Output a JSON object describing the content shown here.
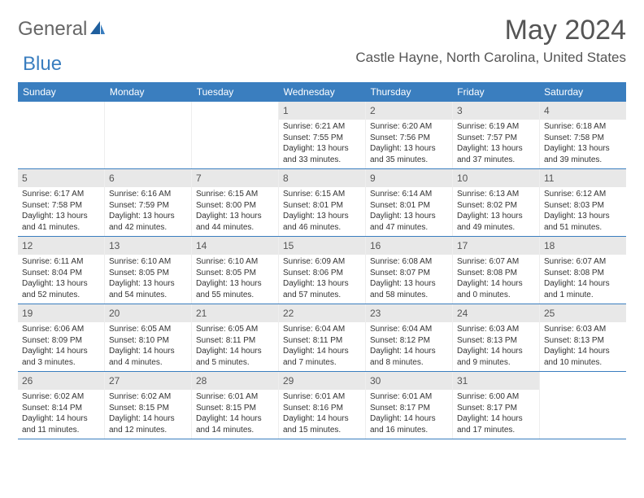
{
  "brand": {
    "textA": "General",
    "textB": "Blue"
  },
  "title": "May 2024",
  "location": "Castle Hayne, North Carolina, United States",
  "colors": {
    "header_bg": "#3a7ebf",
    "header_text": "#ffffff",
    "daynum_bg": "#e8e8e8",
    "text": "#333333",
    "rule": "#3a7ebf"
  },
  "weekdays": [
    "Sunday",
    "Monday",
    "Tuesday",
    "Wednesday",
    "Thursday",
    "Friday",
    "Saturday"
  ],
  "weeks": [
    [
      null,
      null,
      null,
      {
        "n": "1",
        "sr": "6:21 AM",
        "ss": "7:55 PM",
        "dl": "13 hours and 33 minutes."
      },
      {
        "n": "2",
        "sr": "6:20 AM",
        "ss": "7:56 PM",
        "dl": "13 hours and 35 minutes."
      },
      {
        "n": "3",
        "sr": "6:19 AM",
        "ss": "7:57 PM",
        "dl": "13 hours and 37 minutes."
      },
      {
        "n": "4",
        "sr": "6:18 AM",
        "ss": "7:58 PM",
        "dl": "13 hours and 39 minutes."
      }
    ],
    [
      {
        "n": "5",
        "sr": "6:17 AM",
        "ss": "7:58 PM",
        "dl": "13 hours and 41 minutes."
      },
      {
        "n": "6",
        "sr": "6:16 AM",
        "ss": "7:59 PM",
        "dl": "13 hours and 42 minutes."
      },
      {
        "n": "7",
        "sr": "6:15 AM",
        "ss": "8:00 PM",
        "dl": "13 hours and 44 minutes."
      },
      {
        "n": "8",
        "sr": "6:15 AM",
        "ss": "8:01 PM",
        "dl": "13 hours and 46 minutes."
      },
      {
        "n": "9",
        "sr": "6:14 AM",
        "ss": "8:01 PM",
        "dl": "13 hours and 47 minutes."
      },
      {
        "n": "10",
        "sr": "6:13 AM",
        "ss": "8:02 PM",
        "dl": "13 hours and 49 minutes."
      },
      {
        "n": "11",
        "sr": "6:12 AM",
        "ss": "8:03 PM",
        "dl": "13 hours and 51 minutes."
      }
    ],
    [
      {
        "n": "12",
        "sr": "6:11 AM",
        "ss": "8:04 PM",
        "dl": "13 hours and 52 minutes."
      },
      {
        "n": "13",
        "sr": "6:10 AM",
        "ss": "8:05 PM",
        "dl": "13 hours and 54 minutes."
      },
      {
        "n": "14",
        "sr": "6:10 AM",
        "ss": "8:05 PM",
        "dl": "13 hours and 55 minutes."
      },
      {
        "n": "15",
        "sr": "6:09 AM",
        "ss": "8:06 PM",
        "dl": "13 hours and 57 minutes."
      },
      {
        "n": "16",
        "sr": "6:08 AM",
        "ss": "8:07 PM",
        "dl": "13 hours and 58 minutes."
      },
      {
        "n": "17",
        "sr": "6:07 AM",
        "ss": "8:08 PM",
        "dl": "14 hours and 0 minutes."
      },
      {
        "n": "18",
        "sr": "6:07 AM",
        "ss": "8:08 PM",
        "dl": "14 hours and 1 minute."
      }
    ],
    [
      {
        "n": "19",
        "sr": "6:06 AM",
        "ss": "8:09 PM",
        "dl": "14 hours and 3 minutes."
      },
      {
        "n": "20",
        "sr": "6:05 AM",
        "ss": "8:10 PM",
        "dl": "14 hours and 4 minutes."
      },
      {
        "n": "21",
        "sr": "6:05 AM",
        "ss": "8:11 PM",
        "dl": "14 hours and 5 minutes."
      },
      {
        "n": "22",
        "sr": "6:04 AM",
        "ss": "8:11 PM",
        "dl": "14 hours and 7 minutes."
      },
      {
        "n": "23",
        "sr": "6:04 AM",
        "ss": "8:12 PM",
        "dl": "14 hours and 8 minutes."
      },
      {
        "n": "24",
        "sr": "6:03 AM",
        "ss": "8:13 PM",
        "dl": "14 hours and 9 minutes."
      },
      {
        "n": "25",
        "sr": "6:03 AM",
        "ss": "8:13 PM",
        "dl": "14 hours and 10 minutes."
      }
    ],
    [
      {
        "n": "26",
        "sr": "6:02 AM",
        "ss": "8:14 PM",
        "dl": "14 hours and 11 minutes."
      },
      {
        "n": "27",
        "sr": "6:02 AM",
        "ss": "8:15 PM",
        "dl": "14 hours and 12 minutes."
      },
      {
        "n": "28",
        "sr": "6:01 AM",
        "ss": "8:15 PM",
        "dl": "14 hours and 14 minutes."
      },
      {
        "n": "29",
        "sr": "6:01 AM",
        "ss": "8:16 PM",
        "dl": "14 hours and 15 minutes."
      },
      {
        "n": "30",
        "sr": "6:01 AM",
        "ss": "8:17 PM",
        "dl": "14 hours and 16 minutes."
      },
      {
        "n": "31",
        "sr": "6:00 AM",
        "ss": "8:17 PM",
        "dl": "14 hours and 17 minutes."
      },
      null
    ]
  ]
}
